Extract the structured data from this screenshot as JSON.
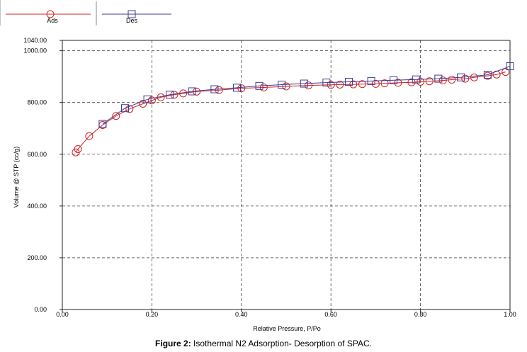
{
  "caption": {
    "label": "Figure 2:",
    "text": " Isothermal N2 Adsorption- Desorption of SPAC."
  },
  "chart_data": {
    "type": "line",
    "xlabel": "Relative Pressure, P/Po",
    "ylabel": "Volume @ STP (cc/g)",
    "xlim": [
      0.0,
      1.0
    ],
    "ylim": [
      0.0,
      1040.0
    ],
    "x_ticks": [
      "0.00",
      "0.20",
      "0.40",
      "0.60",
      "0.80",
      "1.00"
    ],
    "y_ticks": [
      "0.00",
      "200.00",
      "400.00",
      "600.00",
      "800.00",
      "1000.00",
      "1040.00"
    ],
    "grid": true,
    "legend_placement": "top-left",
    "series": [
      {
        "name": "Ads",
        "marker": "circle",
        "color": "#d42020",
        "x": [
          0.03,
          0.035,
          0.06,
          0.09,
          0.12,
          0.15,
          0.18,
          0.2,
          0.22,
          0.25,
          0.27,
          0.3,
          0.35,
          0.4,
          0.45,
          0.5,
          0.55,
          0.6,
          0.62,
          0.65,
          0.67,
          0.7,
          0.72,
          0.75,
          0.78,
          0.8,
          0.82,
          0.85,
          0.87,
          0.9,
          0.92,
          0.95,
          0.97,
          0.99
        ],
        "y": [
          607,
          620,
          670,
          713,
          748,
          775,
          795,
          808,
          820,
          830,
          835,
          842,
          848,
          855,
          858,
          862,
          866,
          868,
          869,
          870,
          871,
          872,
          874,
          876,
          878,
          880,
          882,
          885,
          888,
          892,
          897,
          903,
          908,
          918
        ]
      },
      {
        "name": "Des",
        "marker": "square",
        "color": "#3a3a96",
        "x": [
          0.09,
          0.14,
          0.19,
          0.24,
          0.29,
          0.34,
          0.39,
          0.44,
          0.49,
          0.54,
          0.59,
          0.64,
          0.69,
          0.74,
          0.79,
          0.84,
          0.89,
          0.95,
          1.0
        ],
        "y": [
          717,
          778,
          812,
          830,
          843,
          851,
          857,
          864,
          869,
          873,
          877,
          880,
          883,
          886,
          889,
          892,
          897,
          907,
          940
        ]
      }
    ]
  }
}
